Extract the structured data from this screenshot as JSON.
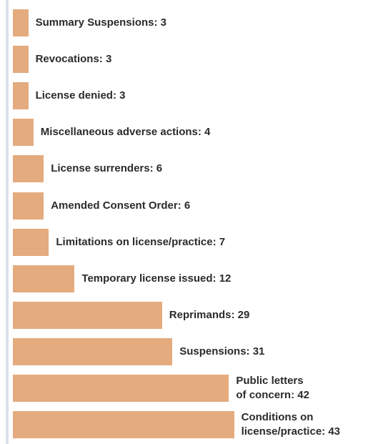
{
  "chart_data": {
    "type": "bar",
    "orientation": "horizontal",
    "color": "#e4ab7e",
    "categories": [
      "Summary Suspensions: 3",
      "Revocations: 3",
      "License denied: 3",
      "Miscellaneous adverse actions: 4",
      "License surrenders: 6",
      "Amended Consent Order: 6",
      "Limitations on license/practice: 7",
      "Temporary license issued: 12",
      "Reprimands: 29",
      "Suspensions: 31",
      "Public letters\nof concern: 42",
      "Conditions on\nlicense/practice: 43"
    ],
    "values": [
      3,
      3,
      3,
      4,
      6,
      6,
      7,
      12,
      29,
      31,
      42,
      43
    ]
  }
}
